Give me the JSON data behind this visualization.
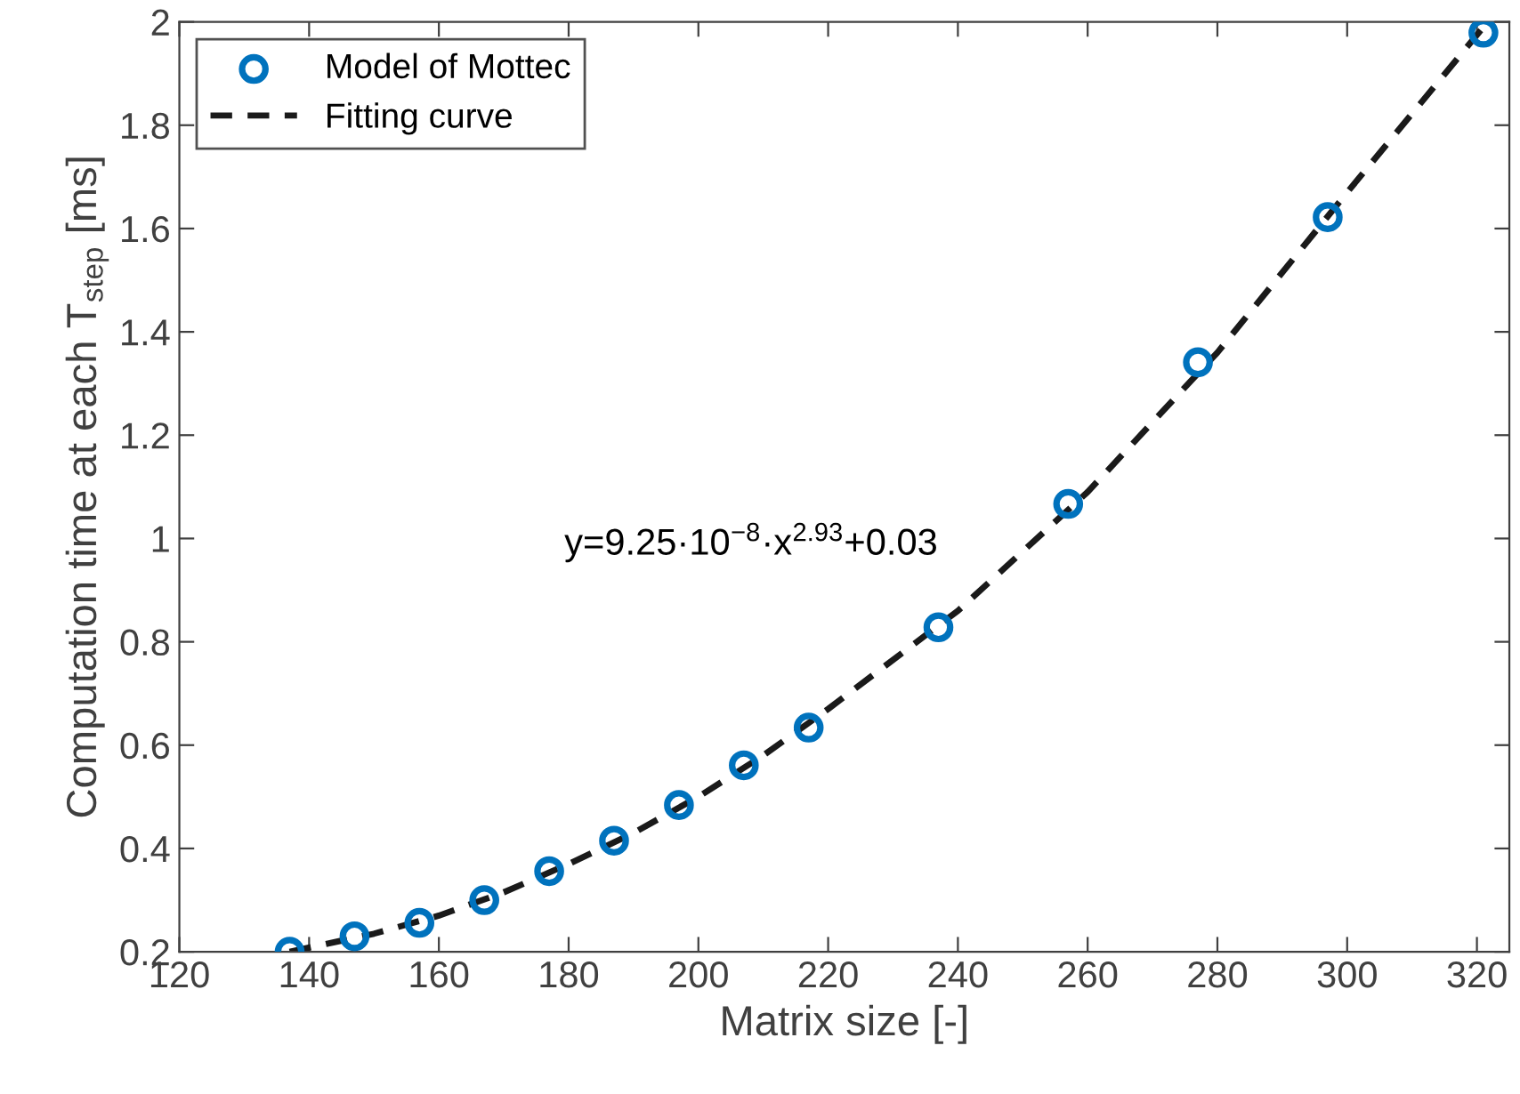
{
  "chart_data": {
    "type": "scatter",
    "xlabel": "Matrix size [-]",
    "ylabel": "Computation time at each T$_{step}$ [ms]",
    "xlim": [
      120,
      325
    ],
    "xticks": [
      120,
      140,
      160,
      180,
      200,
      220,
      240,
      260,
      280,
      300,
      320
    ],
    "ylim": [
      0.2,
      2
    ],
    "yticks": [
      0.2,
      0.4,
      0.6,
      0.8,
      1,
      1.2,
      1.4,
      1.6,
      1.8,
      2
    ],
    "grid": false,
    "legend": "top left",
    "annotations": [
      "y=9.25·10$^{−8}$·x$^{2.93}$+0.03"
    ],
    "series": [
      {
        "name": "Model of Mottec",
        "marker": "circle",
        "color": "#0072bd",
        "x": [
          137,
          147,
          157,
          167,
          177,
          187,
          197,
          207,
          217,
          237,
          257,
          277,
          297,
          321
        ],
        "values": [
          0.2,
          0.23,
          0.256,
          0.3,
          0.356,
          0.415,
          0.484,
          0.561,
          0.634,
          0.828,
          1.067,
          1.341,
          1.622,
          1.979
        ]
      },
      {
        "name": "Fitting curve",
        "type": "line",
        "line_style": "dashed",
        "marker": "none",
        "color": "#1a1a1a",
        "x": [
          137,
          150,
          160,
          170,
          180,
          190,
          200,
          210,
          220,
          240,
          260,
          280,
          300,
          321
        ],
        "values": [
          0.2,
          0.235,
          0.27,
          0.315,
          0.37,
          0.43,
          0.5,
          0.58,
          0.67,
          0.86,
          1.09,
          1.36,
          1.67,
          1.99
        ]
      }
    ]
  }
}
